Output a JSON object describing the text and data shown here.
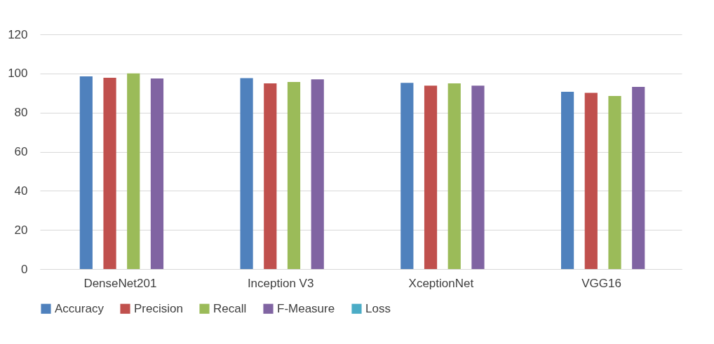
{
  "chart_data": {
    "type": "bar",
    "categories": [
      "DenseNet201",
      "Inception V3",
      "XceptionNet",
      "VGG16"
    ],
    "series": [
      {
        "name": "Accuracy",
        "color": "#4f81bd",
        "values": [
          98.5,
          97.6,
          95.2,
          90.6
        ]
      },
      {
        "name": "Precision",
        "color": "#c0504d",
        "values": [
          97.8,
          94.9,
          93.8,
          90.1
        ]
      },
      {
        "name": "Recall",
        "color": "#9bbb59",
        "values": [
          100,
          95.6,
          94.9,
          88.5
        ]
      },
      {
        "name": "F-Measure",
        "color": "#8064a2",
        "values": [
          97.4,
          97.0,
          93.8,
          93.1
        ]
      },
      {
        "name": "Loss",
        "color": "#4bacc6",
        "values": [
          0,
          0,
          0,
          0
        ]
      }
    ],
    "ylim": [
      0,
      120
    ],
    "yticks": [
      0,
      20,
      40,
      60,
      80,
      100,
      120
    ],
    "grid": "y",
    "legend": "bottom"
  }
}
